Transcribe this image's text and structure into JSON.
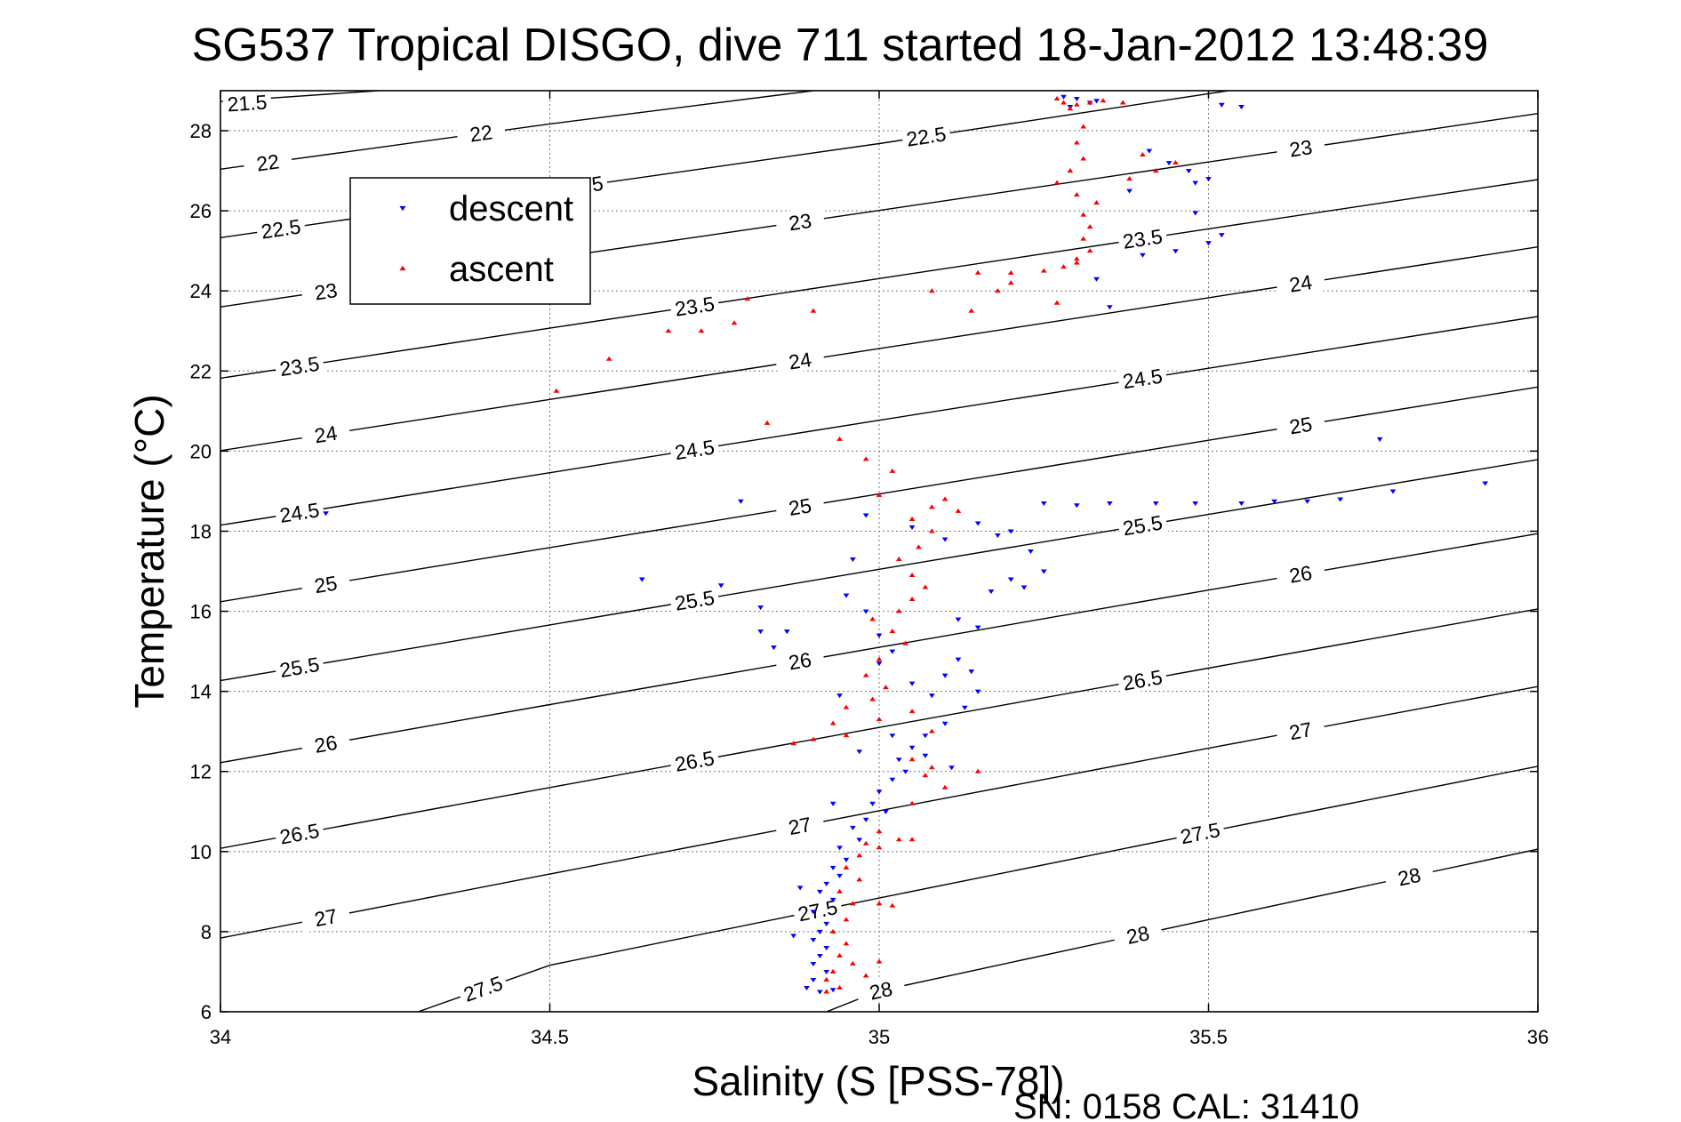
{
  "chart_data": {
    "type": "scatter",
    "title": "SG537 Tropical DISGO, dive 711 started 18-Jan-2012 13:48:39",
    "xlabel": "Salinity (S [PSS-78])",
    "ylabel": "Temperature (°C)",
    "xlim": [
      34,
      36
    ],
    "ylim": [
      6,
      29
    ],
    "xticks": [
      34,
      34.5,
      35,
      35.5,
      36
    ],
    "yticks": [
      6,
      8,
      10,
      12,
      14,
      16,
      18,
      20,
      22,
      24,
      26,
      28
    ],
    "xtick_labels": [
      "34",
      "34.5",
      "35",
      "35.5",
      "36"
    ],
    "ytick_labels": [
      "6",
      "8",
      "10",
      "12",
      "14",
      "16",
      "18",
      "20",
      "22",
      "24",
      "26",
      "28"
    ],
    "grid": true,
    "legend_position": "top-left",
    "footer": "SN: 0158  CAL: 31410",
    "density_contours": [
      {
        "level": 21.5,
        "label": "21.5",
        "path": [
          [
            34.0,
            28.73
          ],
          [
            34.24,
            29.0
          ]
        ]
      },
      {
        "level": 22.0,
        "label": "22",
        "path": [
          [
            34.0,
            27.04
          ],
          [
            34.5,
            28.17
          ],
          [
            34.9,
            29.0
          ]
        ]
      },
      {
        "level": 22.5,
        "label": "22.5",
        "path": [
          [
            34.0,
            25.33
          ],
          [
            34.5,
            26.51
          ],
          [
            35.0,
            27.68
          ],
          [
            35.53,
            29.0
          ]
        ]
      },
      {
        "level": 23.0,
        "label": "23",
        "path": [
          [
            34.0,
            23.6
          ],
          [
            34.5,
            24.81
          ],
          [
            35.0,
            26.01
          ],
          [
            35.5,
            27.22
          ],
          [
            36.0,
            28.43
          ]
        ]
      },
      {
        "level": 23.5,
        "label": "23.5",
        "path": [
          [
            34.0,
            21.82
          ],
          [
            34.5,
            23.07
          ],
          [
            35.0,
            24.31
          ],
          [
            35.5,
            25.55
          ],
          [
            36.0,
            26.78
          ]
        ]
      },
      {
        "level": 24.0,
        "label": "24",
        "path": [
          [
            34.0,
            20.01
          ],
          [
            34.5,
            21.29
          ],
          [
            35.0,
            22.56
          ],
          [
            35.5,
            23.83
          ],
          [
            36.0,
            25.1
          ]
        ]
      },
      {
        "level": 24.5,
        "label": "24.5",
        "path": [
          [
            34.0,
            18.15
          ],
          [
            34.5,
            19.46
          ],
          [
            35.0,
            20.77
          ],
          [
            35.5,
            22.07
          ],
          [
            36.0,
            23.36
          ]
        ]
      },
      {
        "level": 25.0,
        "label": "25",
        "path": [
          [
            34.0,
            16.24
          ],
          [
            34.5,
            17.59
          ],
          [
            35.0,
            18.93
          ],
          [
            35.5,
            20.27
          ],
          [
            36.0,
            21.6
          ]
        ]
      },
      {
        "level": 25.5,
        "label": "25.5",
        "path": [
          [
            34.0,
            14.27
          ],
          [
            34.5,
            15.66
          ],
          [
            35.0,
            17.05
          ],
          [
            35.5,
            18.42
          ],
          [
            36.0,
            19.79
          ]
        ]
      },
      {
        "level": 26.0,
        "label": "26",
        "path": [
          [
            34.0,
            12.22
          ],
          [
            34.5,
            13.67
          ],
          [
            35.0,
            15.1
          ],
          [
            35.5,
            16.53
          ],
          [
            36.0,
            17.94
          ]
        ]
      },
      {
        "level": 26.5,
        "label": "26.5",
        "path": [
          [
            34.0,
            10.08
          ],
          [
            34.5,
            11.6
          ],
          [
            35.0,
            13.1
          ],
          [
            35.5,
            14.58
          ],
          [
            36.0,
            16.06
          ]
        ]
      },
      {
        "level": 27.0,
        "label": "27",
        "path": [
          [
            34.0,
            7.84
          ],
          [
            34.5,
            9.44
          ],
          [
            35.0,
            11.02
          ],
          [
            35.5,
            12.58
          ],
          [
            36.0,
            14.12
          ]
        ]
      },
      {
        "level": 27.5,
        "label": "27.5",
        "path": [
          [
            34.3,
            6.0
          ],
          [
            34.5,
            7.16
          ],
          [
            35.0,
            8.84
          ],
          [
            35.5,
            10.5
          ],
          [
            36.0,
            12.13
          ]
        ]
      },
      {
        "level": 28.0,
        "label": "28",
        "path": [
          [
            34.92,
            6.0
          ],
          [
            35.0,
            6.52
          ],
          [
            35.5,
            8.3
          ],
          [
            36.0,
            10.06
          ]
        ]
      }
    ],
    "series": [
      {
        "name": "descent",
        "color": "#0000ff",
        "marker": "triangle-down",
        "points": [
          [
            35.28,
            28.85
          ],
          [
            35.3,
            28.8
          ],
          [
            35.32,
            28.7
          ],
          [
            35.29,
            28.6
          ],
          [
            35.33,
            28.75
          ],
          [
            35.52,
            28.65
          ],
          [
            35.55,
            28.6
          ],
          [
            35.41,
            27.5
          ],
          [
            35.44,
            27.2
          ],
          [
            35.47,
            27.0
          ],
          [
            35.48,
            26.7
          ],
          [
            35.5,
            26.8
          ],
          [
            35.38,
            26.5
          ],
          [
            35.48,
            25.95
          ],
          [
            35.52,
            25.4
          ],
          [
            35.5,
            25.2
          ],
          [
            35.45,
            25.0
          ],
          [
            35.4,
            24.9
          ],
          [
            35.33,
            24.3
          ],
          [
            35.35,
            23.6
          ],
          [
            34.16,
            18.45
          ],
          [
            34.79,
            18.75
          ],
          [
            34.64,
            16.8
          ],
          [
            34.76,
            16.65
          ],
          [
            34.82,
            16.1
          ],
          [
            34.82,
            15.5
          ],
          [
            34.86,
            15.5
          ],
          [
            34.84,
            15.1
          ],
          [
            34.96,
            17.3
          ],
          [
            34.98,
            18.4
          ],
          [
            35.05,
            18.1
          ],
          [
            35.1,
            17.8
          ],
          [
            35.15,
            18.2
          ],
          [
            35.18,
            17.9
          ],
          [
            35.2,
            18.0
          ],
          [
            35.23,
            17.5
          ],
          [
            35.25,
            17.0
          ],
          [
            35.2,
            16.8
          ],
          [
            35.22,
            16.6
          ],
          [
            35.17,
            16.5
          ],
          [
            35.12,
            15.8
          ],
          [
            35.15,
            15.6
          ],
          [
            35.25,
            18.7
          ],
          [
            35.3,
            18.65
          ],
          [
            35.35,
            18.7
          ],
          [
            35.42,
            18.7
          ],
          [
            35.48,
            18.7
          ],
          [
            35.55,
            18.7
          ],
          [
            35.6,
            18.75
          ],
          [
            35.65,
            18.75
          ],
          [
            35.7,
            18.8
          ],
          [
            35.78,
            19.0
          ],
          [
            35.92,
            19.2
          ],
          [
            35.76,
            20.3
          ],
          [
            34.95,
            16.4
          ],
          [
            34.98,
            16.0
          ],
          [
            35.0,
            15.4
          ],
          [
            35.02,
            15.0
          ],
          [
            35.0,
            14.7
          ],
          [
            35.05,
            14.2
          ],
          [
            35.08,
            13.9
          ],
          [
            35.1,
            14.4
          ],
          [
            35.12,
            14.8
          ],
          [
            35.14,
            14.5
          ],
          [
            35.15,
            14.0
          ],
          [
            35.13,
            13.6
          ],
          [
            35.1,
            13.2
          ],
          [
            35.07,
            12.9
          ],
          [
            35.05,
            12.6
          ],
          [
            35.03,
            12.3
          ],
          [
            35.07,
            12.4
          ],
          [
            35.04,
            12.0
          ],
          [
            35.02,
            11.8
          ],
          [
            35.0,
            11.5
          ],
          [
            34.99,
            11.2
          ],
          [
            35.01,
            11.0
          ],
          [
            34.98,
            10.8
          ],
          [
            34.96,
            10.6
          ],
          [
            34.97,
            10.3
          ],
          [
            34.94,
            10.1
          ],
          [
            34.95,
            9.8
          ],
          [
            34.93,
            9.6
          ],
          [
            34.94,
            9.4
          ],
          [
            34.92,
            9.2
          ],
          [
            34.91,
            9.0
          ],
          [
            34.93,
            8.8
          ],
          [
            34.9,
            8.5
          ],
          [
            34.92,
            8.2
          ],
          [
            34.91,
            8.0
          ],
          [
            34.9,
            7.8
          ],
          [
            34.92,
            7.6
          ],
          [
            34.91,
            7.4
          ],
          [
            34.9,
            7.2
          ],
          [
            34.92,
            7.0
          ],
          [
            34.9,
            6.8
          ],
          [
            34.89,
            6.6
          ],
          [
            34.91,
            6.5
          ],
          [
            34.93,
            6.55
          ],
          [
            34.87,
            7.9
          ],
          [
            34.88,
            9.1
          ],
          [
            34.93,
            11.2
          ],
          [
            34.97,
            12.5
          ],
          [
            35.02,
            12.9
          ],
          [
            34.94,
            13.9
          ],
          [
            35.11,
            12.1
          ]
        ]
      },
      {
        "name": "ascent",
        "color": "#ff0000",
        "marker": "triangle-up",
        "points": [
          [
            35.27,
            28.8
          ],
          [
            35.28,
            28.7
          ],
          [
            35.3,
            28.65
          ],
          [
            35.32,
            28.7
          ],
          [
            35.34,
            28.75
          ],
          [
            35.37,
            28.7
          ],
          [
            35.29,
            28.55
          ],
          [
            35.31,
            28.1
          ],
          [
            35.3,
            27.7
          ],
          [
            35.31,
            27.3
          ],
          [
            35.29,
            27.0
          ],
          [
            35.27,
            26.7
          ],
          [
            35.3,
            26.4
          ],
          [
            35.33,
            26.2
          ],
          [
            35.31,
            25.9
          ],
          [
            35.32,
            25.6
          ],
          [
            35.31,
            25.3
          ],
          [
            35.32,
            25.0
          ],
          [
            35.3,
            24.8
          ],
          [
            35.28,
            24.6
          ],
          [
            35.25,
            24.5
          ],
          [
            35.2,
            24.45
          ],
          [
            35.15,
            24.45
          ],
          [
            35.2,
            24.2
          ],
          [
            35.18,
            24.0
          ],
          [
            35.3,
            24.7
          ],
          [
            35.38,
            26.8
          ],
          [
            35.42,
            27.0
          ],
          [
            35.45,
            27.2
          ],
          [
            35.4,
            27.4
          ],
          [
            35.27,
            23.7
          ],
          [
            35.08,
            24.0
          ],
          [
            35.14,
            23.5
          ],
          [
            34.9,
            23.5
          ],
          [
            34.8,
            23.8
          ],
          [
            34.78,
            23.2
          ],
          [
            34.73,
            23.0
          ],
          [
            34.68,
            23.0
          ],
          [
            34.59,
            22.3
          ],
          [
            34.51,
            21.5
          ],
          [
            34.83,
            20.7
          ],
          [
            34.94,
            20.3
          ],
          [
            34.98,
            19.8
          ],
          [
            35.02,
            19.5
          ],
          [
            35.0,
            18.9
          ],
          [
            35.05,
            18.3
          ],
          [
            35.08,
            18.6
          ],
          [
            35.1,
            18.8
          ],
          [
            35.12,
            18.5
          ],
          [
            35.08,
            18.0
          ],
          [
            35.06,
            17.6
          ],
          [
            35.03,
            17.3
          ],
          [
            35.05,
            16.9
          ],
          [
            35.07,
            16.6
          ],
          [
            35.05,
            16.3
          ],
          [
            35.03,
            16.0
          ],
          [
            34.99,
            15.8
          ],
          [
            35.02,
            15.5
          ],
          [
            35.04,
            15.2
          ],
          [
            35.0,
            14.8
          ],
          [
            34.98,
            14.4
          ],
          [
            35.01,
            14.1
          ],
          [
            34.99,
            13.8
          ],
          [
            34.95,
            13.6
          ],
          [
            34.93,
            13.2
          ],
          [
            34.9,
            12.8
          ],
          [
            34.87,
            12.7
          ],
          [
            34.95,
            12.9
          ],
          [
            35.0,
            13.3
          ],
          [
            35.05,
            13.5
          ],
          [
            35.08,
            13.0
          ],
          [
            35.05,
            12.3
          ],
          [
            35.07,
            11.9
          ],
          [
            35.1,
            11.6
          ],
          [
            35.05,
            11.2
          ],
          [
            35.08,
            12.1
          ],
          [
            35.15,
            12.0
          ],
          [
            35.0,
            10.5
          ],
          [
            34.98,
            10.2
          ],
          [
            35.0,
            10.1
          ],
          [
            35.03,
            10.3
          ],
          [
            34.97,
            9.9
          ],
          [
            34.95,
            9.6
          ],
          [
            34.97,
            9.3
          ],
          [
            34.94,
            9.0
          ],
          [
            34.96,
            8.7
          ],
          [
            35.0,
            8.7
          ],
          [
            35.02,
            8.65
          ],
          [
            34.95,
            8.3
          ],
          [
            34.93,
            8.0
          ],
          [
            34.95,
            7.7
          ],
          [
            34.94,
            7.4
          ],
          [
            34.96,
            7.2
          ],
          [
            35.0,
            7.25
          ],
          [
            34.93,
            7.0
          ],
          [
            34.92,
            6.8
          ],
          [
            34.94,
            6.6
          ],
          [
            34.92,
            6.5
          ],
          [
            34.98,
            6.9
          ],
          [
            35.05,
            10.3
          ]
        ]
      }
    ]
  }
}
